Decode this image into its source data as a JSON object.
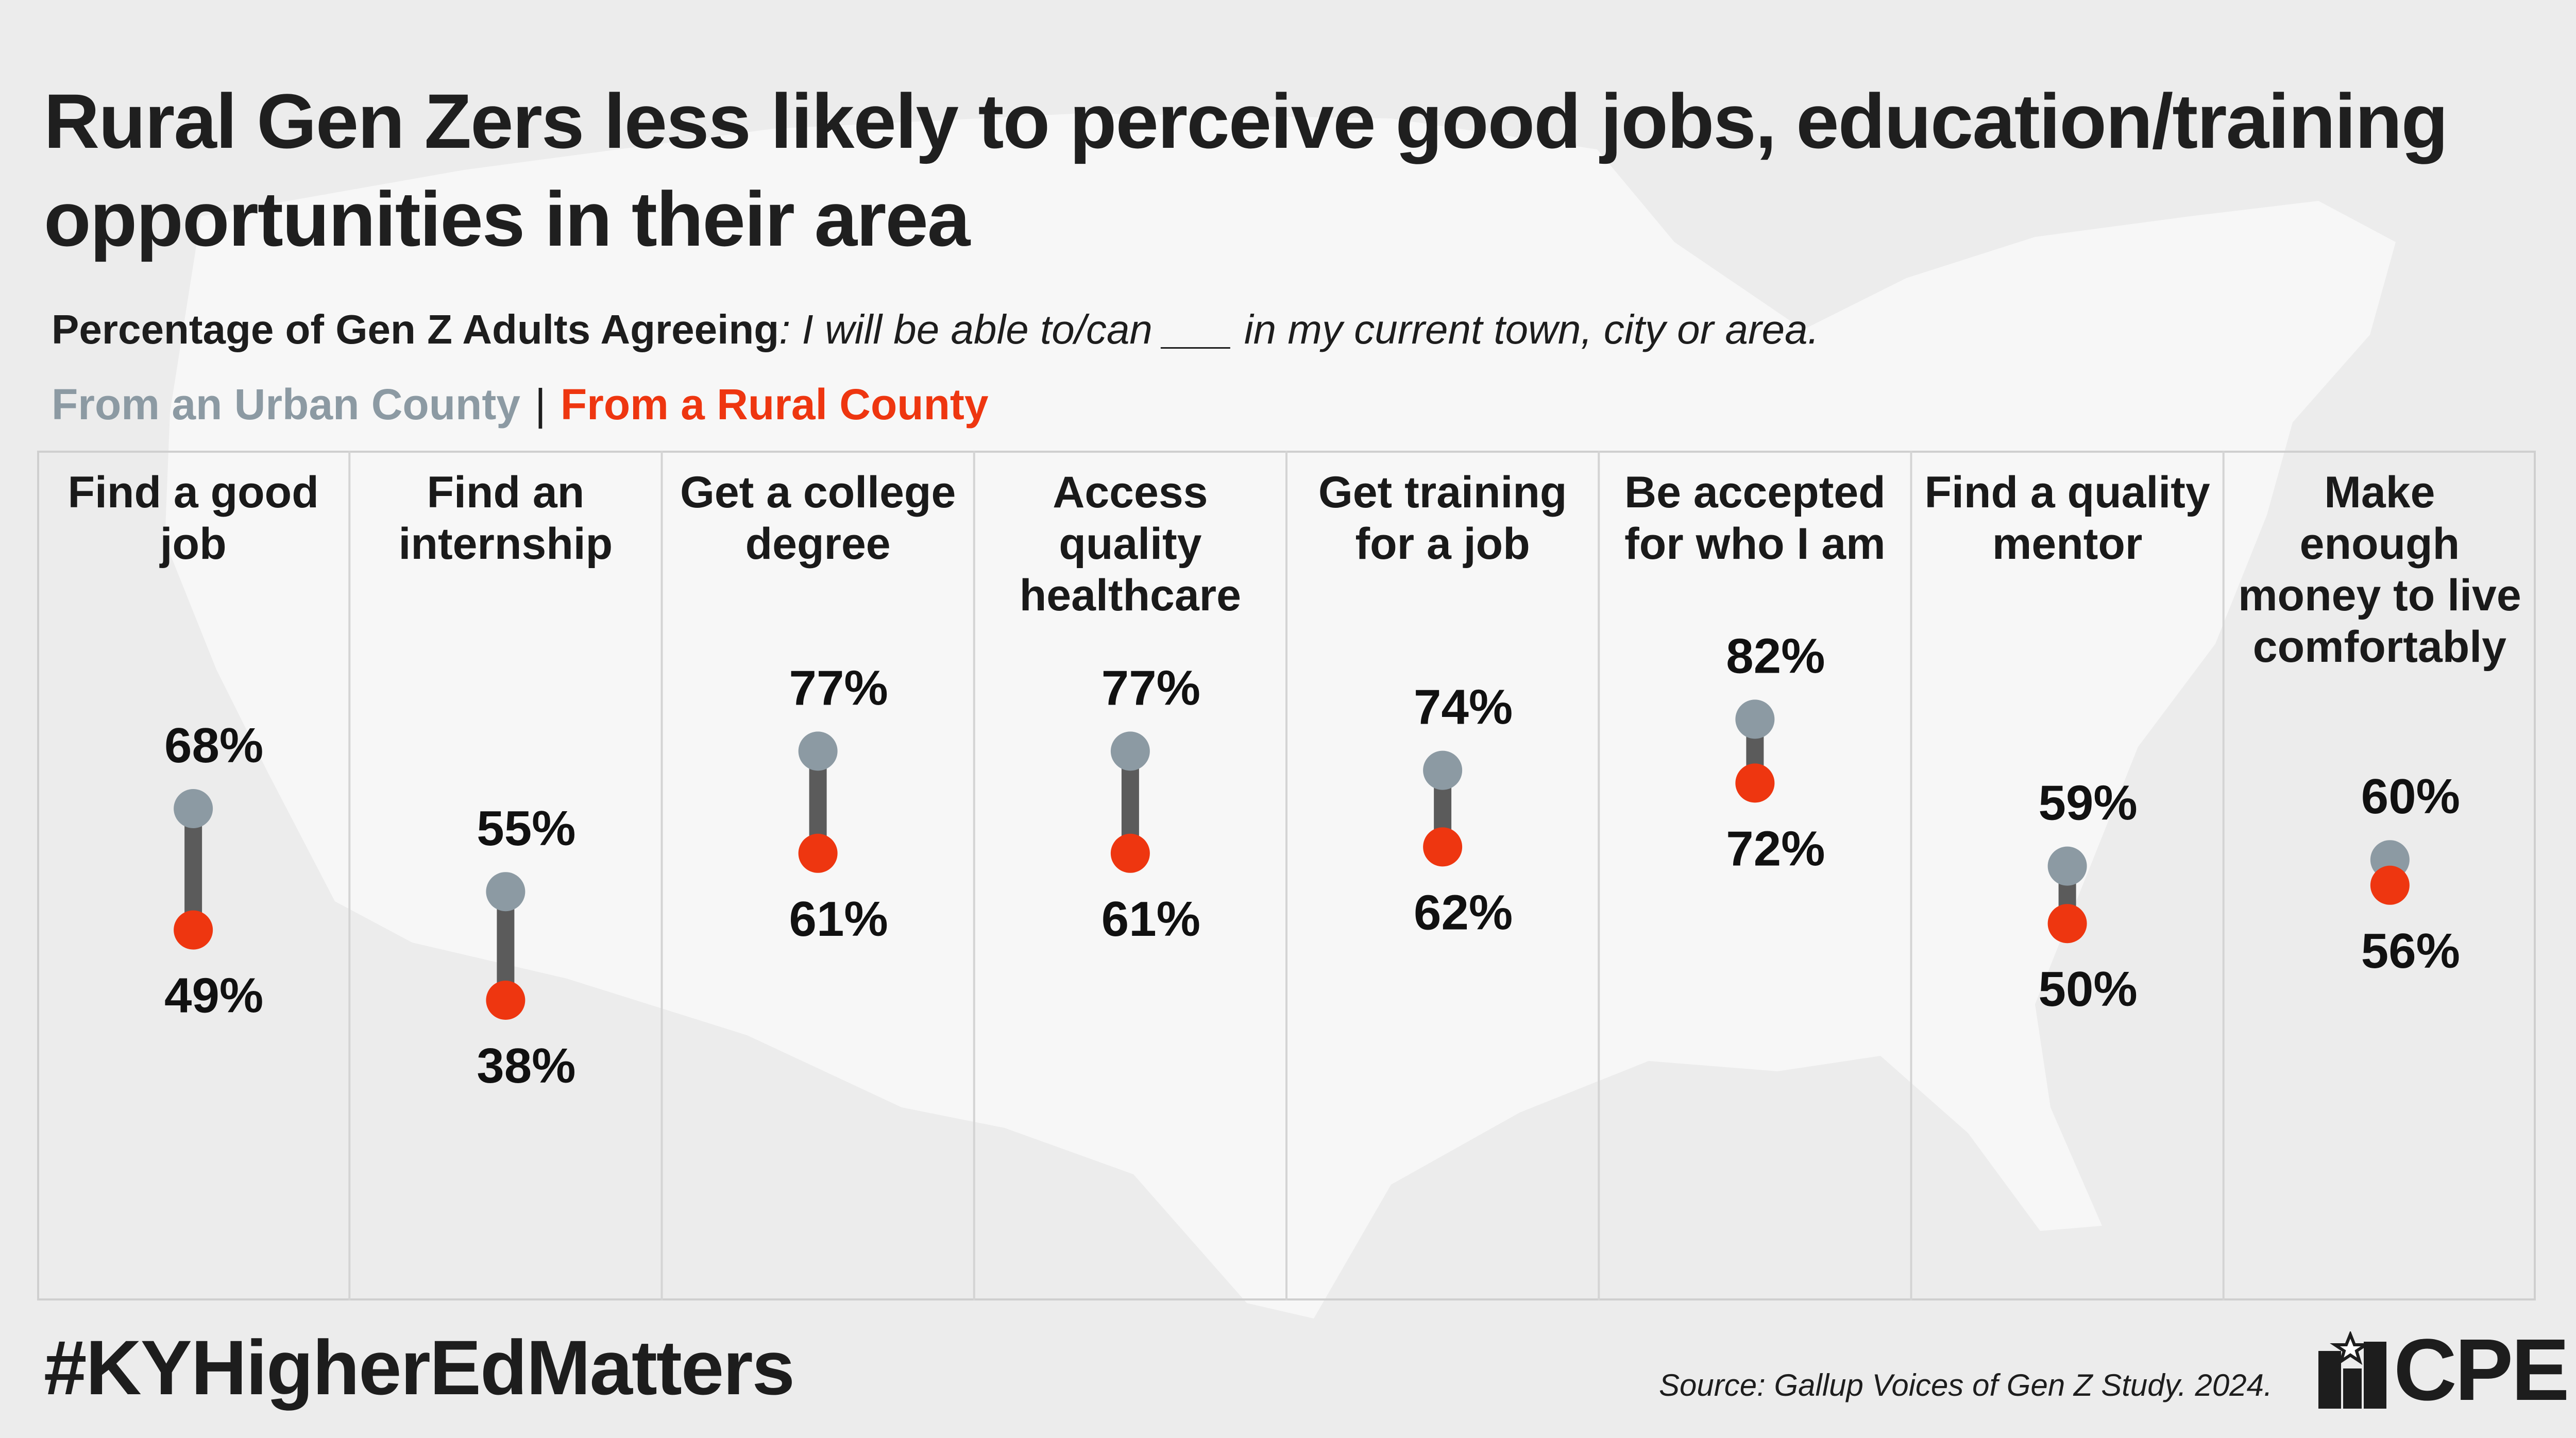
{
  "title": "Rural Gen Zers less likely to perceive good jobs, education/training opportunities in their area",
  "subtitle_bold": "Percentage of Gen Z Adults Agreeing",
  "subtitle_italic": ": I will be able to/can ___ in my current town, city or area.",
  "legend": {
    "urban_label": "From an Urban County",
    "separator": "|",
    "rural_label": "From a Rural County"
  },
  "colors": {
    "urban": "#8c9aa3",
    "rural": "#ee3610",
    "connector": "#5b5b5b"
  },
  "chart_data": {
    "type": "dumbbell",
    "title": "Rural Gen Zers less likely to perceive good jobs, education/training opportunities in their area",
    "subtitle": "Percentage of Gen Z Adults Agreeing: I will be able to/can ___ in my current town, city or area.",
    "categories": [
      "Find a good job",
      "Find an internship",
      "Get a college degree",
      "Access quality healthcare",
      "Get training for a job",
      "Be accepted for who I am",
      "Find a quality mentor",
      "Make enough money to live comfortably"
    ],
    "category_lines": [
      [
        "Find a good",
        "job"
      ],
      [
        "Find an",
        "internship"
      ],
      [
        "Get a college",
        "degree"
      ],
      [
        "Access",
        "quality",
        "healthcare"
      ],
      [
        "Get training",
        "for a job"
      ],
      [
        "Be accepted",
        "for who I am"
      ],
      [
        "Find a quality",
        "mentor"
      ],
      [
        "Make",
        "enough",
        "money to live",
        "comfortably"
      ]
    ],
    "series": [
      {
        "name": "From an Urban County",
        "values": [
          68,
          55,
          77,
          77,
          74,
          82,
          59,
          60
        ]
      },
      {
        "name": "From a Rural County",
        "values": [
          49,
          38,
          61,
          61,
          62,
          72,
          50,
          56
        ]
      }
    ],
    "unit": "%"
  },
  "footer": {
    "hashtag": "#KYHigherEdMatters",
    "source": "Source: Gallup Voices of Gen Z Study. 2024.",
    "logo_text": "CPE",
    "logo_icon": "cpe-logo-icon"
  }
}
